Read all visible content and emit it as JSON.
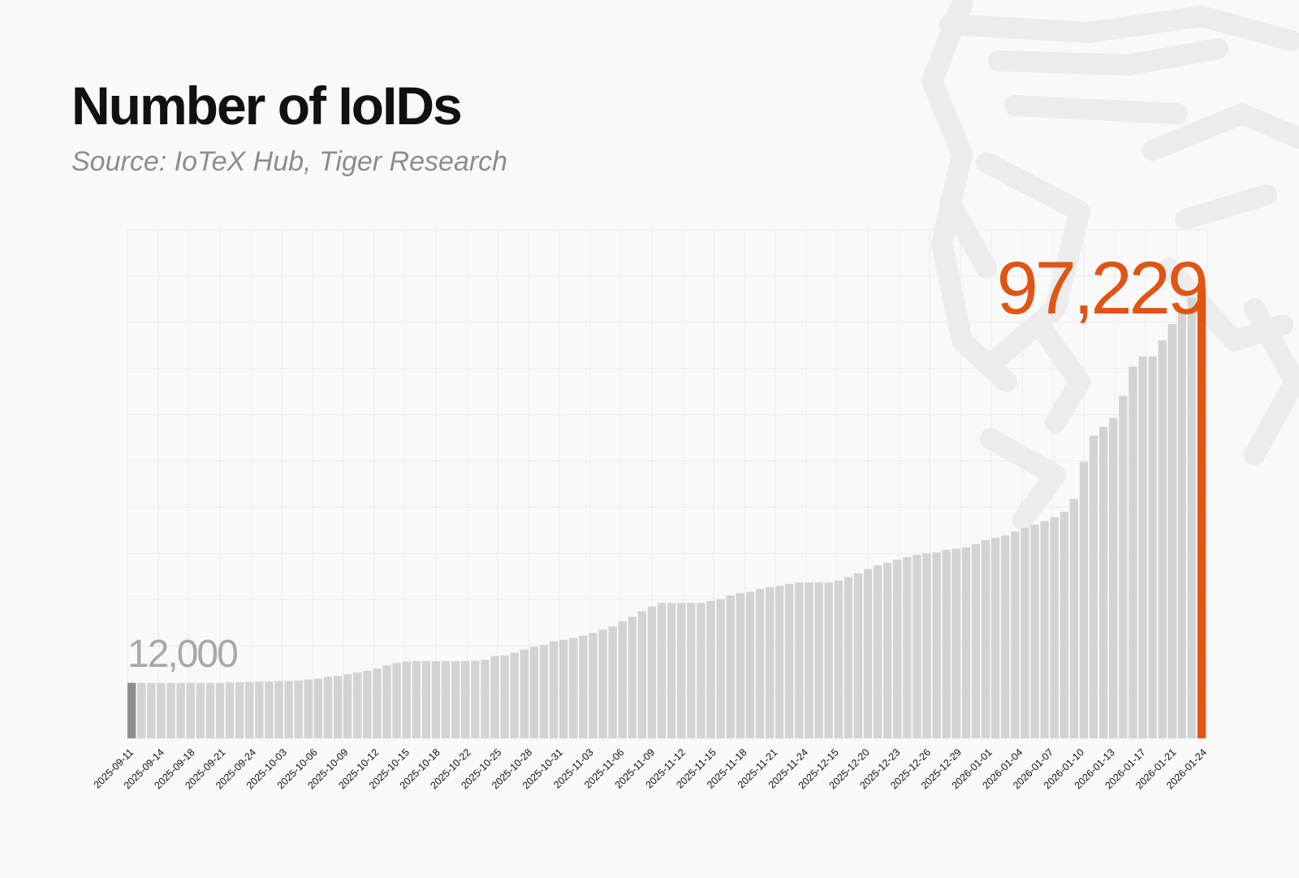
{
  "title": "Number of IoIDs",
  "subtitle": "Source: IoTeX Hub, Tiger Research",
  "colors": {
    "background": "#f9f9f9",
    "bar": "#d3d3d3",
    "first_bar": "#8f8f8f",
    "highlight": "#e05414",
    "start_label": "#a8a8a8",
    "grid": "#ececec",
    "watermark": "#ececec"
  },
  "chart_data": {
    "type": "bar",
    "title": "Number of IoIDs",
    "xlabel": "",
    "ylabel": "",
    "ylim": [
      0,
      110000
    ],
    "grid": true,
    "legend": "none",
    "tick_labels": [
      "2025-09-11",
      "2025-09-14",
      "2025-09-18",
      "2025-09-21",
      "2025-09-24",
      "2025-10-03",
      "2025-10-06",
      "2025-10-09",
      "2025-10-12",
      "2025-10-15",
      "2025-10-18",
      "2025-10-22",
      "2025-10-25",
      "2025-10-28",
      "2025-10-31",
      "2025-11-03",
      "2025-11-06",
      "2025-11-09",
      "2025-11-12",
      "2025-11-15",
      "2025-11-18",
      "2025-11-21",
      "2025-11-24",
      "2025-12-15",
      "2025-12-20",
      "2025-12-23",
      "2025-12-26",
      "2025-12-29",
      "2026-01-01",
      "2026-01-04",
      "2026-01-07",
      "2026-01-10",
      "2026-01-13",
      "2026-01-17",
      "2026-01-21",
      "2026-01-24"
    ],
    "values": [
      12000,
      12000,
      12000,
      12000,
      12000,
      12000,
      12000,
      12000,
      12000,
      12000,
      12100,
      12150,
      12200,
      12300,
      12300,
      12400,
      12400,
      12500,
      12700,
      12900,
      13300,
      13500,
      13900,
      14200,
      14600,
      15100,
      15800,
      16300,
      16600,
      16700,
      16700,
      16700,
      16700,
      16700,
      16700,
      16800,
      17000,
      17800,
      17900,
      18500,
      19200,
      19800,
      20200,
      21000,
      21300,
      21700,
      22200,
      22800,
      23500,
      24200,
      25300,
      26300,
      27500,
      28500,
      29300,
      29300,
      29300,
      29300,
      29300,
      29700,
      30100,
      30900,
      31400,
      31700,
      32300,
      32700,
      33000,
      33400,
      33700,
      33700,
      33700,
      33700,
      34100,
      34900,
      35700,
      36600,
      37400,
      38000,
      38600,
      39200,
      39700,
      40000,
      40200,
      40800,
      41000,
      41300,
      42000,
      42900,
      43400,
      43900,
      44700,
      45500,
      46200,
      47000,
      47800,
      49000,
      51800,
      59800,
      65500,
      67400,
      69300,
      74100,
      80400,
      82600,
      82600,
      86100,
      89600,
      92700,
      95300,
      97229
    ],
    "start_label": "12,000",
    "end_label": "97,229"
  }
}
